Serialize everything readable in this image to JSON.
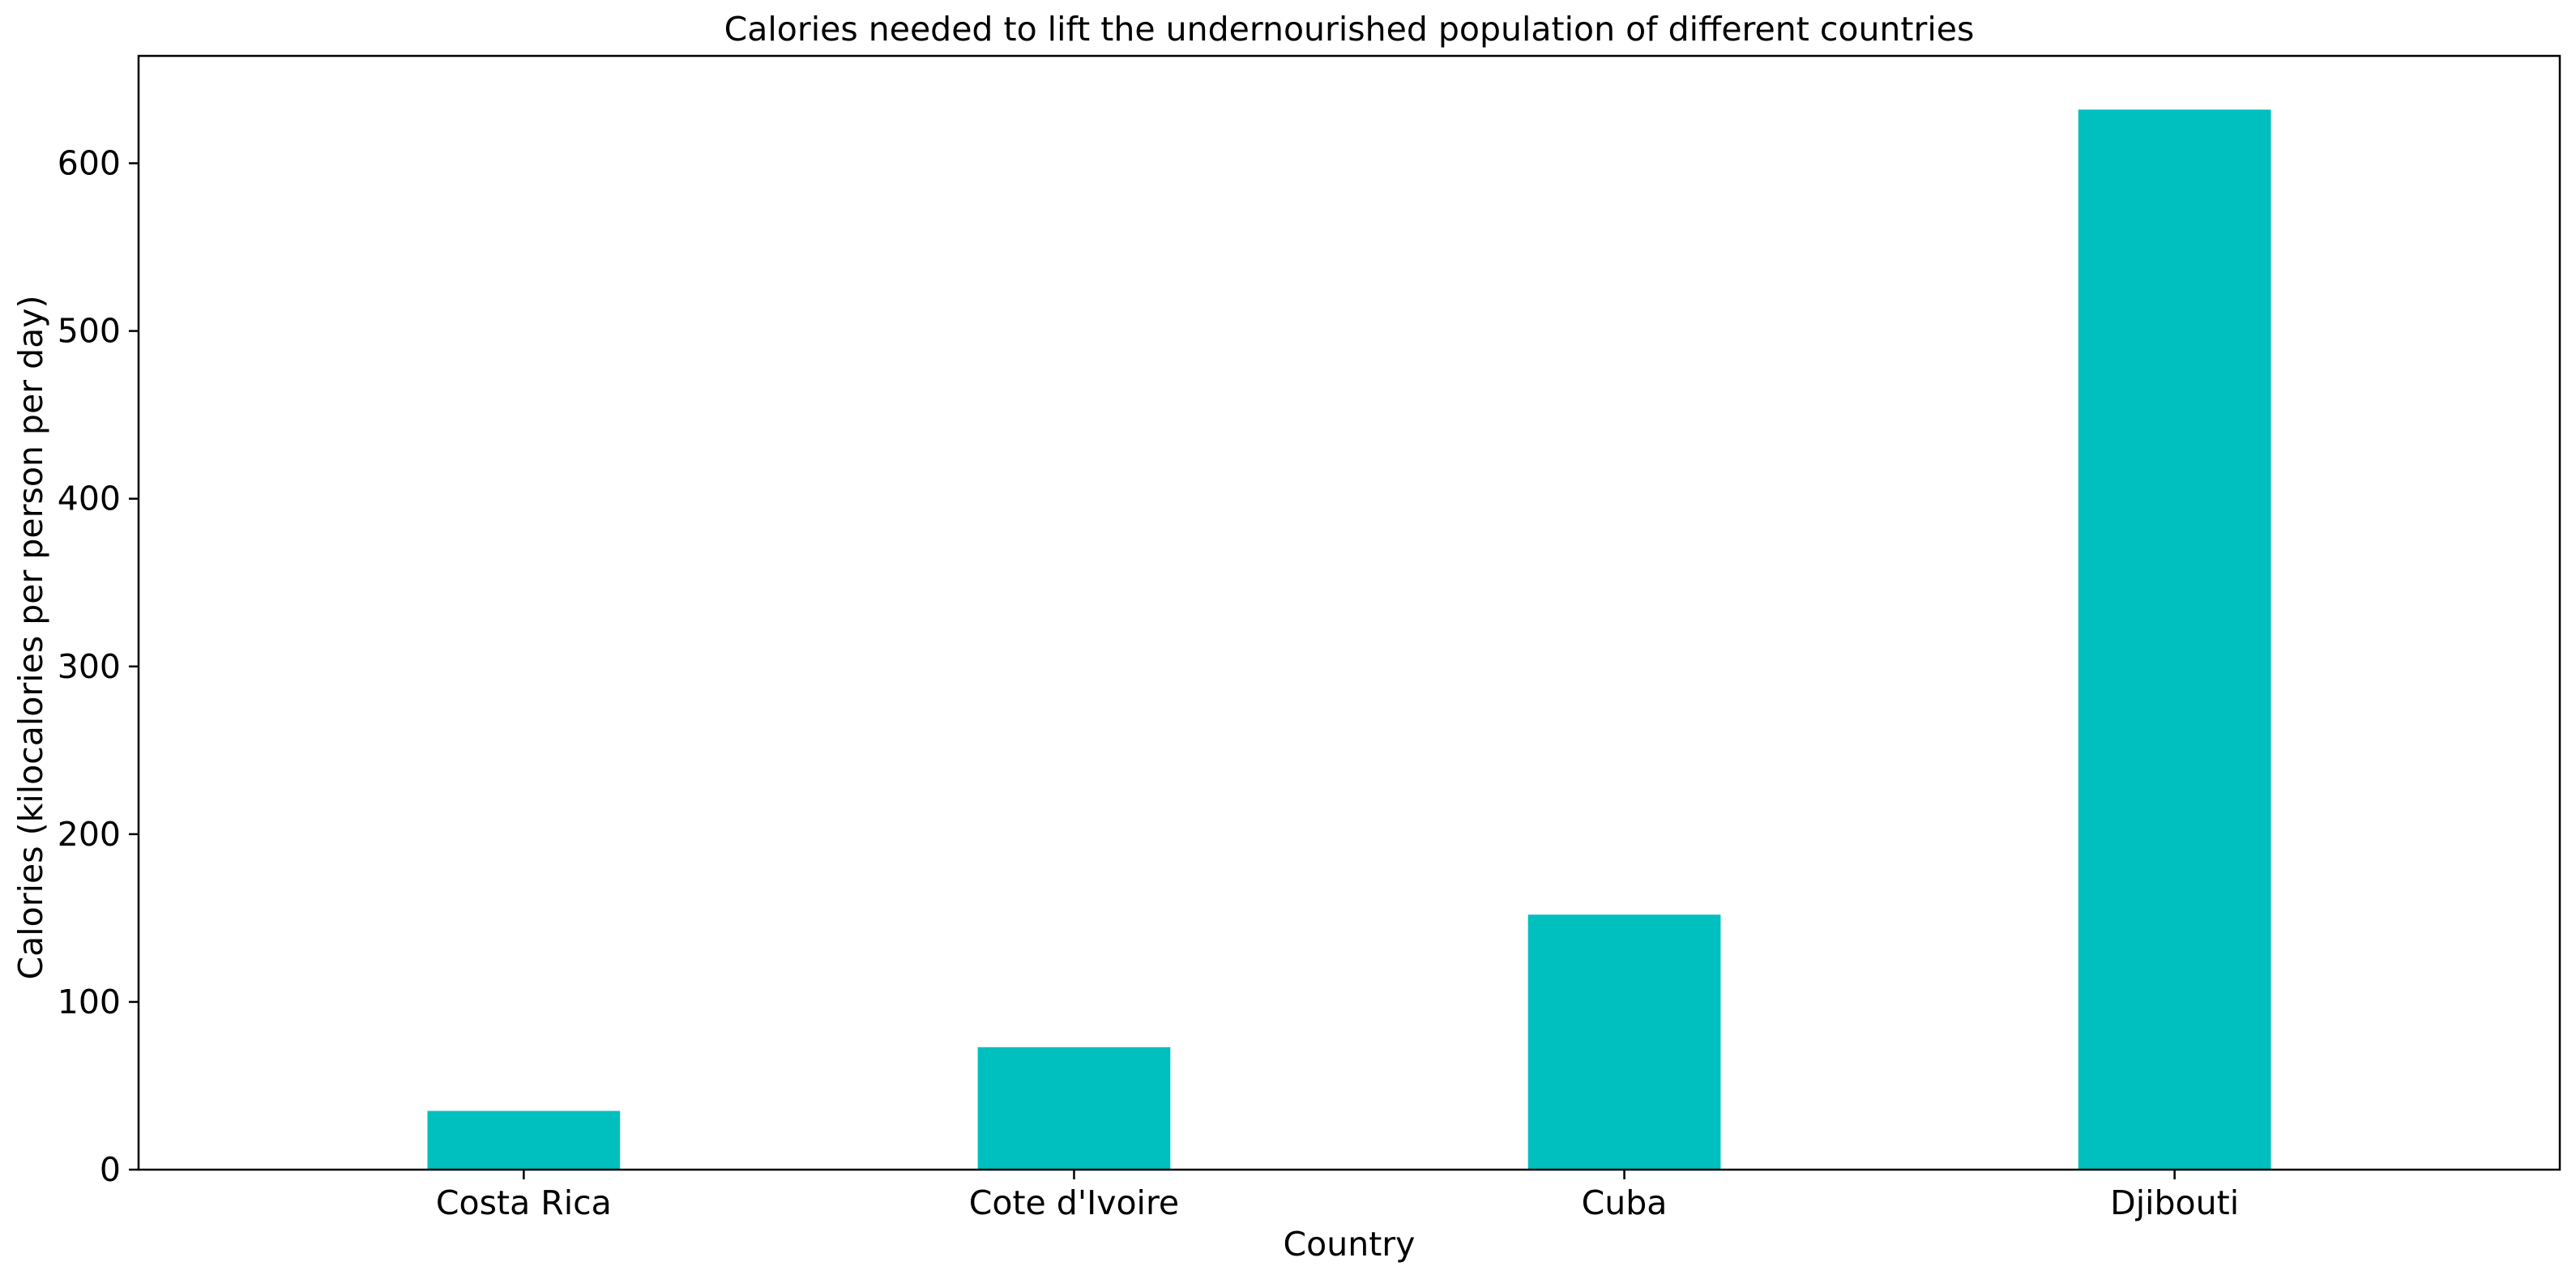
{
  "chart_data": {
    "type": "bar",
    "title": "Calories needed to lift the undernourished population of different countries",
    "xlabel": "Country",
    "ylabel": "Calories (kilocalories per person per day)",
    "categories": [
      "Costa Rica",
      "Cote d'Ivoire",
      "Cuba",
      "Djibouti"
    ],
    "values": [
      35,
      73,
      152,
      632
    ],
    "ylim": [
      0,
      664
    ],
    "yticks": [
      0,
      100,
      200,
      300,
      400,
      500,
      600
    ],
    "grid": false,
    "legend": "none",
    "bar_color": "#00bfbf"
  }
}
